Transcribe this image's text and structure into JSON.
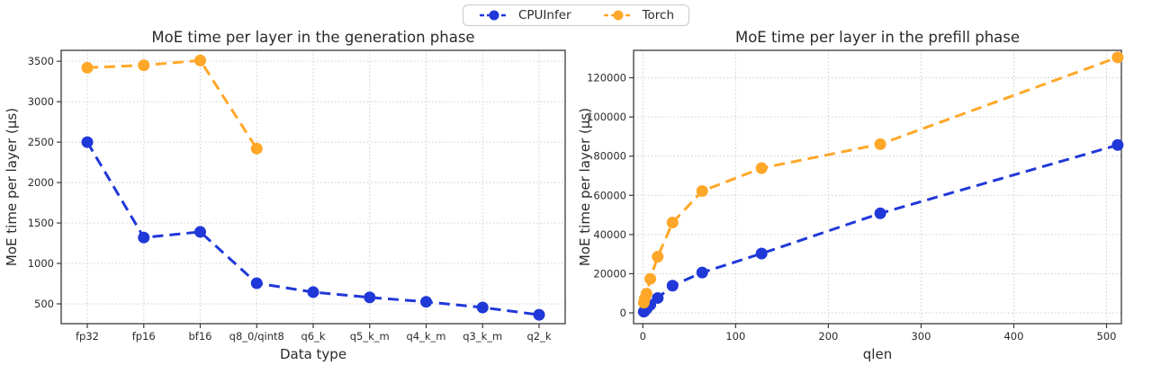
{
  "page": {
    "background": "#ffffff"
  },
  "legend": {
    "items": [
      {
        "label": "CPUInfer",
        "color": "#2038d8"
      },
      {
        "label": "Torch",
        "color": "#ffa728"
      }
    ]
  },
  "colors": {
    "cpuinfer": "#2038d8",
    "torch": "#ffa728",
    "grid": "#cdcdcd",
    "axis": "#3a3a3a"
  },
  "chart_data": [
    {
      "type": "line",
      "title": "MoE time per layer in the generation phase",
      "xlabel": "Data type",
      "ylabel": "MoE time per layer (μs)",
      "x_type": "categorical",
      "categories": [
        "fp32",
        "fp16",
        "bf16",
        "q8_0/qint8",
        "q6_k",
        "q5_k_m",
        "q4_k_m",
        "q3_k_m",
        "q2_k"
      ],
      "yticks": [
        500,
        1000,
        1500,
        2000,
        2500,
        3000,
        3500
      ],
      "ylim": [
        255,
        3635
      ],
      "grid": true,
      "legend_position": "top-center-shared",
      "line_style": "dashed",
      "marker": "circle",
      "series": [
        {
          "name": "CPUInfer",
          "color": "#2038d8",
          "values": [
            2500,
            1320,
            1390,
            755,
            645,
            580,
            525,
            455,
            365
          ]
        },
        {
          "name": "Torch",
          "color": "#ffa728",
          "values": [
            3420,
            3450,
            3510,
            2420
          ]
        }
      ]
    },
    {
      "type": "line",
      "title": "MoE time per layer in the prefill phase",
      "xlabel": "qlen",
      "ylabel": "MoE time per layer (μs)",
      "x_type": "linear",
      "x": [
        1,
        2,
        4,
        8,
        16,
        32,
        64,
        128,
        256,
        512
      ],
      "xticks": [
        0,
        100,
        200,
        300,
        400,
        500
      ],
      "xlim": [
        -10,
        516
      ],
      "yticks": [
        0,
        20000,
        40000,
        60000,
        80000,
        100000,
        120000
      ],
      "ylim": [
        -5500,
        134000
      ],
      "grid": true,
      "legend_position": "top-center-shared",
      "line_style": "dashed",
      "marker": "circle",
      "series": [
        {
          "name": "CPUInfer",
          "color": "#2038d8",
          "values": [
            600,
            1100,
            2100,
            4100,
            7600,
            13900,
            20600,
            30300,
            50800,
            85700
          ]
        },
        {
          "name": "Torch",
          "color": "#ffa728",
          "values": [
            5200,
            7200,
            9800,
            17400,
            28700,
            46100,
            62200,
            73900,
            86100,
            130400
          ]
        }
      ]
    }
  ]
}
